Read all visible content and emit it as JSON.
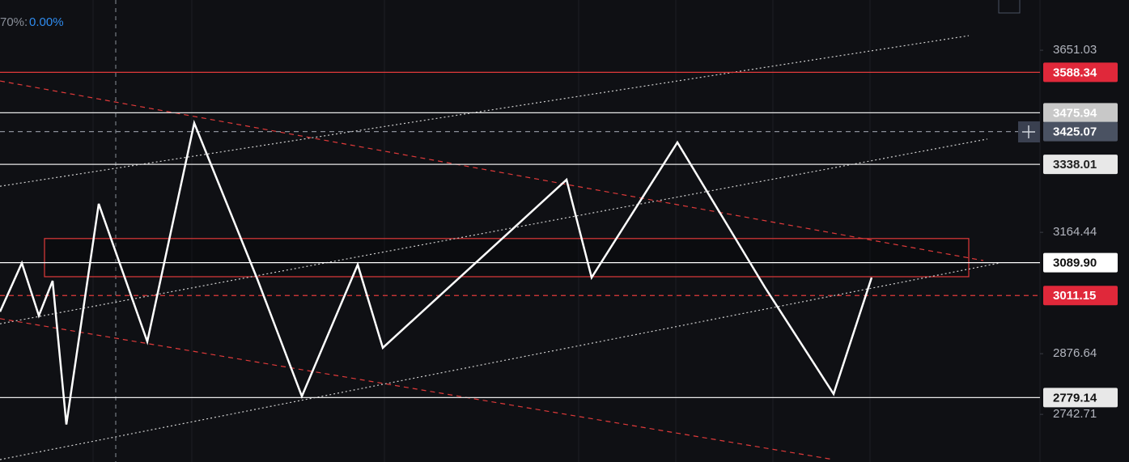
{
  "chart_data": {
    "type": "line",
    "header_left": "70%:",
    "header_right": "0.00%",
    "log_scale": true,
    "ylim": [
      2642,
      3798
    ],
    "xlim": [
      0,
      1285
    ],
    "yticks": [
      3651.03,
      3164.44,
      2876.64,
      2742.71
    ],
    "series": [
      {
        "color": "#ffffff",
        "x": [
          0,
          27,
          48,
          65,
          82,
          122,
          182,
          240,
          318,
          373,
          442,
          473,
          700,
          731,
          837,
          945,
          1030,
          1077
        ],
        "values": [
          2973,
          3089,
          2964,
          3046,
          2721,
          3236,
          2904,
          3448,
          3050,
          2782,
          3085,
          2890,
          3298,
          3054,
          3396,
          3031,
          2787,
          3054
        ]
      }
    ],
    "channels": [
      {
        "x": [
          0,
          1197
        ],
        "values": [
          3281,
          3693
        ],
        "color": "#d0d0d0",
        "style": "dotted"
      },
      {
        "x": [
          0,
          1220
        ],
        "values": [
          2945,
          3405
        ],
        "color": "#d0d0d0",
        "style": "dotted"
      },
      {
        "x": [
          0,
          1235
        ],
        "values": [
          2647,
          3089
        ],
        "color": "#d0d0d0",
        "style": "dotted"
      },
      {
        "x": [
          0,
          1215
        ],
        "values": [
          3564,
          3095
        ],
        "color": "#e03a3a",
        "style": "dashed"
      },
      {
        "x": [
          0,
          1030
        ],
        "values": [
          2957,
          2647
        ],
        "color": "#e03a3a",
        "style": "dashed"
      }
    ],
    "zones": [
      {
        "x": [
          55,
          1197
        ],
        "values": [
          3149,
          3056
        ],
        "color": "#e03a3a"
      }
    ],
    "crosshair_x": 143,
    "levels": [
      {
        "price": 3588.34,
        "color": "#e03a3a",
        "style": "solid",
        "label_bg": "#e0283a",
        "label_color": "#ffffff"
      },
      {
        "price": 3475.94,
        "color": "#e8e8e8",
        "style": "solid",
        "label_bg": "#c8c8c8",
        "label_color": "#ffffff"
      },
      {
        "price": 3425.07,
        "color": "#8a8f99",
        "style": "dashed",
        "label_bg": "#4a5262",
        "label_color": "#ffffff"
      },
      {
        "price": 3338.01,
        "color": "#e8e8e8",
        "style": "solid",
        "label_bg": "#e8e8e8",
        "label_color": "#222222"
      },
      {
        "price": {
          "value": 3089.9,
          "label": "3089.90"
        },
        "color": "#ffffff",
        "style": "solid",
        "label_bg": "#ffffff",
        "label_color": "#111111"
      },
      {
        "price": 3011.15,
        "color": "#e03a3a",
        "style": "dashed",
        "label_bg": "#e0283a",
        "label_color": "#ffffff"
      },
      {
        "price": 2779.14,
        "color": "#e8e8e8",
        "style": "solid",
        "label_bg": "#e8e8e8",
        "label_color": "#111111"
      }
    ]
  }
}
